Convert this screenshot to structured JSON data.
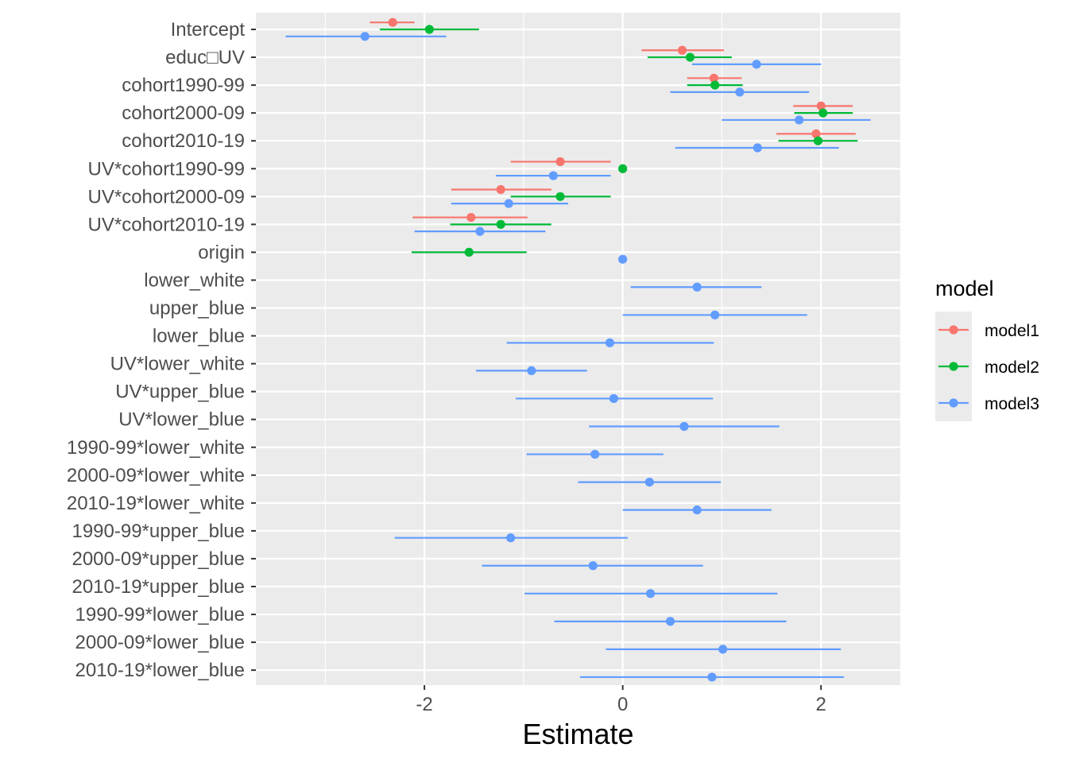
{
  "chart_data": {
    "type": "scatter",
    "subtype": "coefficient-plot-with-error-bars",
    "xlabel": "Estimate",
    "ylabel": "",
    "xlim": [
      -3.7,
      2.8
    ],
    "x_ticks": [
      -2,
      0,
      2
    ],
    "x_tick_labels": [
      "-2",
      "0",
      "2"
    ],
    "grid": true,
    "legend": {
      "title": "model",
      "position": "right",
      "entries": [
        "model1",
        "model2",
        "model3"
      ]
    },
    "colors": {
      "model1": "#F8766D",
      "model2": "#00BA38",
      "model3": "#619CFF"
    },
    "categories": [
      "Intercept",
      "educ□UV",
      "cohort1990-99",
      "cohort2000-09",
      "cohort2010-19",
      "UV*cohort1990-99",
      "UV*cohort2000-09",
      "UV*cohort2010-19",
      "origin",
      "lower_white",
      "upper_blue",
      "lower_blue",
      "UV*lower_white",
      "UV*upper_blue",
      "UV*lower_blue",
      "1990-99*lower_white",
      "2000-09*lower_white",
      "2010-19*lower_white",
      "1990-99*upper_blue",
      "2000-09*upper_blue",
      "2010-19*upper_blue",
      "1990-99*lower_blue",
      "2000-09*lower_blue",
      "2010-19*lower_blue"
    ],
    "series": [
      {
        "name": "model1",
        "points": [
          {
            "term": "Intercept",
            "estimate": -2.32,
            "low": -2.55,
            "high": -2.1
          },
          {
            "term": "educ□UV",
            "estimate": 0.6,
            "low": 0.19,
            "high": 1.02
          },
          {
            "term": "cohort1990-99",
            "estimate": 0.92,
            "low": 0.65,
            "high": 1.2
          },
          {
            "term": "cohort2000-09",
            "estimate": 2.0,
            "low": 1.72,
            "high": 2.32
          },
          {
            "term": "cohort2010-19",
            "estimate": 1.95,
            "low": 1.55,
            "high": 2.35
          },
          {
            "term": "UV*cohort1990-99",
            "estimate": -0.63,
            "low": -1.13,
            "high": -0.12
          },
          {
            "term": "UV*cohort2000-09",
            "estimate": -1.23,
            "low": -1.73,
            "high": -0.72
          },
          {
            "term": "UV*cohort2010-19",
            "estimate": -1.53,
            "low": -2.12,
            "high": -0.96
          }
        ]
      },
      {
        "name": "model2",
        "points": [
          {
            "term": "Intercept",
            "estimate": -1.95,
            "low": -2.45,
            "high": -1.45
          },
          {
            "term": "educ□UV",
            "estimate": 0.68,
            "low": 0.25,
            "high": 1.1
          },
          {
            "term": "cohort1990-99",
            "estimate": 0.93,
            "low": 0.65,
            "high": 1.21
          },
          {
            "term": "cohort2000-09",
            "estimate": 2.02,
            "low": 1.73,
            "high": 2.32
          },
          {
            "term": "cohort2010-19",
            "estimate": 1.97,
            "low": 1.57,
            "high": 2.37
          },
          {
            "term": "UV*cohort1990-99",
            "estimate": 0.0,
            "low": 0.0,
            "high": 0.0
          },
          {
            "term": "UV*cohort2000-09",
            "estimate": -0.63,
            "low": -1.13,
            "high": -0.12
          },
          {
            "term": "UV*cohort2010-19",
            "estimate": -1.23,
            "low": -1.74,
            "high": -0.72
          },
          {
            "term": "origin",
            "estimate": -1.55,
            "low": -2.13,
            "high": -0.97
          }
        ]
      },
      {
        "name": "model3",
        "points": [
          {
            "term": "Intercept",
            "estimate": -2.6,
            "low": -3.4,
            "high": -1.78
          },
          {
            "term": "educ□UV",
            "estimate": 1.35,
            "low": 0.7,
            "high": 2.0
          },
          {
            "term": "cohort1990-99",
            "estimate": 1.18,
            "low": 0.48,
            "high": 1.88
          },
          {
            "term": "cohort2000-09",
            "estimate": 1.78,
            "low": 1.0,
            "high": 2.5
          },
          {
            "term": "cohort2010-19",
            "estimate": 1.36,
            "low": 0.53,
            "high": 2.18
          },
          {
            "term": "UV*cohort1990-99",
            "estimate": -0.7,
            "low": -1.28,
            "high": -0.12
          },
          {
            "term": "UV*cohort2000-09",
            "estimate": -1.15,
            "low": -1.73,
            "high": -0.55
          },
          {
            "term": "UV*cohort2010-19",
            "estimate": -1.44,
            "low": -2.1,
            "high": -0.78
          },
          {
            "term": "origin",
            "estimate": 0.0,
            "low": 0.0,
            "high": 0.0
          },
          {
            "term": "lower_white",
            "estimate": 0.75,
            "low": 0.08,
            "high": 1.4
          },
          {
            "term": "upper_blue",
            "estimate": 0.93,
            "low": 0.0,
            "high": 1.86
          },
          {
            "term": "lower_blue",
            "estimate": -0.13,
            "low": -1.17,
            "high": 0.92
          },
          {
            "term": "UV*lower_white",
            "estimate": -0.92,
            "low": -1.48,
            "high": -0.36
          },
          {
            "term": "UV*upper_blue",
            "estimate": -0.09,
            "low": -1.08,
            "high": 0.91
          },
          {
            "term": "UV*lower_blue",
            "estimate": 0.62,
            "low": -0.34,
            "high": 1.58
          },
          {
            "term": "1990-99*lower_white",
            "estimate": -0.28,
            "low": -0.97,
            "high": 0.41
          },
          {
            "term": "2000-09*lower_white",
            "estimate": 0.27,
            "low": -0.45,
            "high": 0.99
          },
          {
            "term": "2010-19*lower_white",
            "estimate": 0.75,
            "low": 0.0,
            "high": 1.5
          },
          {
            "term": "1990-99*upper_blue",
            "estimate": -1.13,
            "low": -2.3,
            "high": 0.05
          },
          {
            "term": "2000-09*upper_blue",
            "estimate": -0.3,
            "low": -1.42,
            "high": 0.81
          },
          {
            "term": "2010-19*upper_blue",
            "estimate": 0.28,
            "low": -0.99,
            "high": 1.56
          },
          {
            "term": "1990-99*lower_blue",
            "estimate": 0.48,
            "low": -0.69,
            "high": 1.65
          },
          {
            "term": "2000-09*lower_blue",
            "estimate": 1.01,
            "low": -0.17,
            "high": 2.2
          },
          {
            "term": "2010-19*lower_blue",
            "estimate": 0.9,
            "low": -0.43,
            "high": 2.23
          }
        ]
      }
    ]
  }
}
